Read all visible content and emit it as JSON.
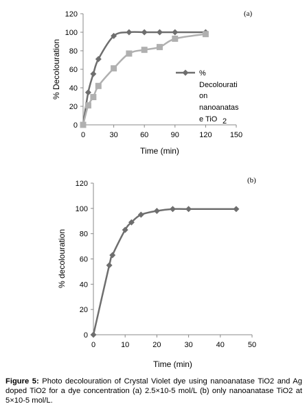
{
  "chart_data": [
    {
      "type": "line",
      "panel_label": "(a)",
      "xlabel": "Time (min)",
      "ylabel": "% Decolouration",
      "xlim": [
        0,
        150
      ],
      "ylim": [
        0,
        120
      ],
      "xticks": [
        "0",
        "30",
        "60",
        "90",
        "120",
        "150"
      ],
      "yticks": [
        "0",
        "20",
        "40",
        "60",
        "80",
        "100",
        "120"
      ],
      "grid": false,
      "legend_position": "right",
      "series": [
        {
          "name": "% Decolouration nanoanatase TiO2",
          "legend_lines": [
            "%",
            "Decolourati",
            "on",
            "nanoanatas",
            "e TiO",
            "2"
          ],
          "color": "#6e6e6e",
          "marker": "diamond",
          "x": [
            0,
            5,
            10,
            15,
            30,
            45,
            60,
            75,
            90,
            120
          ],
          "y": [
            0,
            35,
            55,
            71,
            96,
            100,
            100,
            100,
            100,
            100
          ]
        },
        {
          "color": "#b0b0b0",
          "marker": "square",
          "x": [
            0,
            5,
            10,
            15,
            30,
            45,
            60,
            75,
            90,
            120
          ],
          "y": [
            0,
            21,
            30,
            42,
            61,
            77,
            81,
            84,
            93,
            98
          ]
        }
      ]
    },
    {
      "type": "line",
      "panel_label": "(b)",
      "xlabel": "Time (min)",
      "ylabel": "% decolouration",
      "xlim": [
        0,
        50
      ],
      "ylim": [
        0,
        120
      ],
      "xticks": [
        "0",
        "10",
        "20",
        "30",
        "40",
        "50"
      ],
      "yticks": [
        "0",
        "20",
        "40",
        "60",
        "80",
        "100",
        "120"
      ],
      "grid": false,
      "series": [
        {
          "color": "#6e6e6e",
          "marker": "diamond",
          "x": [
            0,
            5,
            6,
            10,
            12,
            15,
            20,
            25,
            30,
            45
          ],
          "y": [
            0,
            55,
            63,
            83,
            89,
            95,
            98,
            99.5,
            99.5,
            99.5
          ]
        }
      ]
    }
  ],
  "caption": {
    "label": "Figure 5:",
    "text": " Photo decolouration of Crystal Violet dye using nanoanatase TiO2 and Ag doped TiO2 for a dye concentration   (a) 2.5×10-5 mol/L (b) only nanoanatase TiO2 at 5×10-5 mol/L."
  }
}
